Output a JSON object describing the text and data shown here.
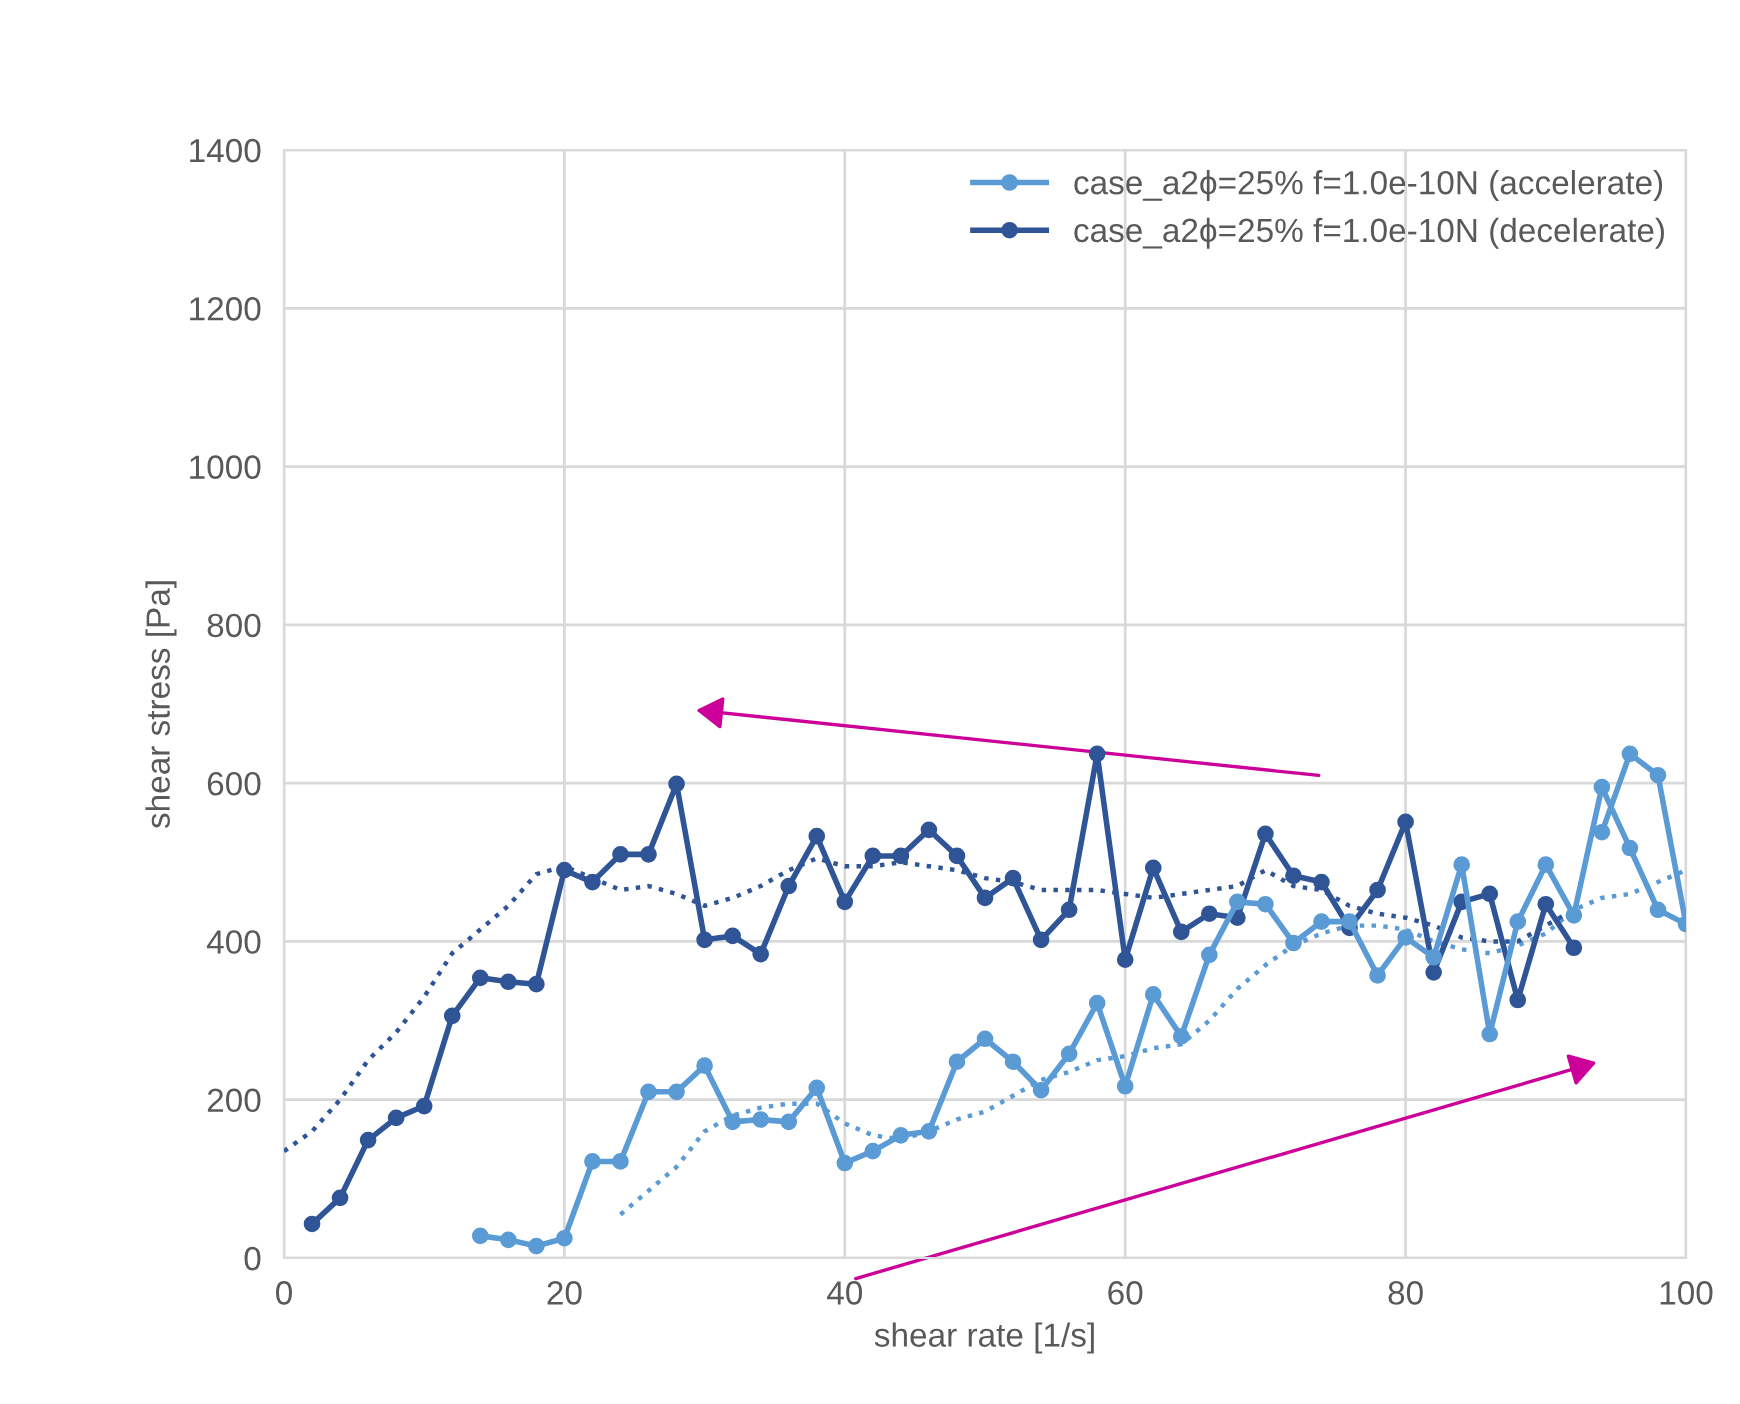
{
  "chart_data": {
    "type": "line",
    "xlabel": "shear rate [1/s]",
    "ylabel": "shear stress [Pa]",
    "xlim": [
      0,
      100
    ],
    "xticks": [
      0,
      20,
      40,
      60,
      80,
      100
    ],
    "ylim": [
      0,
      1400
    ],
    "yticks": [
      0,
      200,
      400,
      600,
      800,
      1000,
      1200,
      1400
    ],
    "grid": true,
    "legend": "top right",
    "marker": "circle",
    "line_style": "solid",
    "series": [
      {
        "name": "case_a2ϕ=25% f=1.0e-10N (accelerate)",
        "color": "#5b9bd5",
        "x": [
          14,
          16,
          18,
          20,
          22,
          24,
          26,
          28,
          30,
          32,
          34,
          36,
          38,
          40,
          42,
          44,
          46,
          48,
          50,
          52,
          54,
          56,
          58,
          60,
          62,
          64,
          66,
          68,
          70,
          72,
          74,
          76,
          78,
          80,
          82,
          84,
          86,
          88,
          90,
          92,
          94,
          96,
          98,
          100,
          98,
          96,
          94
        ],
        "values": [
          28,
          23,
          15,
          25,
          122,
          122,
          210,
          210,
          243,
          172,
          175,
          172,
          215,
          120,
          135,
          155,
          160,
          248,
          277,
          248,
          212,
          258,
          322,
          217,
          333,
          280,
          383,
          450,
          447,
          398,
          425,
          425,
          357,
          405,
          380,
          497,
          283,
          425,
          497,
          433,
          595,
          518,
          440,
          422,
          610,
          637,
          538
        ]
      },
      {
        "name": "case_a2ϕ=25% f=1.0e-10N (decelerate)",
        "color": "#2f5597",
        "x": [
          2,
          4,
          6,
          8,
          10,
          12,
          14,
          16,
          18,
          20,
          22,
          24,
          26,
          28,
          30,
          32,
          34,
          36,
          38,
          40,
          42,
          44,
          46,
          48,
          50,
          52,
          54,
          56,
          58,
          60,
          62,
          64,
          66,
          68,
          70,
          72,
          74,
          76,
          78,
          80,
          82,
          84,
          86,
          88,
          90,
          92
        ],
        "values": [
          43,
          76,
          149,
          177,
          192,
          306,
          354,
          349,
          346,
          490,
          475,
          510,
          510,
          599,
          402,
          407,
          384,
          470,
          533,
          450,
          508,
          508,
          541,
          508,
          455,
          480,
          402,
          440,
          637,
          377,
          493,
          412,
          435,
          430,
          536,
          483,
          475,
          417,
          465,
          551,
          361,
          450,
          460,
          326,
          447,
          392
        ]
      },
      {
        "color": "#2f5597",
        "marker": "none",
        "line_style": "dotted",
        "x": [
          0,
          2,
          4,
          6,
          8,
          10,
          12,
          14,
          16,
          18,
          20,
          22,
          24,
          26,
          28,
          30,
          32,
          34,
          36,
          38,
          40,
          42,
          44,
          46,
          48,
          50,
          52,
          54,
          56,
          58,
          60,
          62,
          64,
          66,
          68,
          70,
          72,
          74,
          76,
          78,
          80,
          82,
          84,
          86,
          88,
          90,
          92
        ],
        "values": [
          135,
          160,
          200,
          250,
          285,
          330,
          385,
          415,
          445,
          485,
          495,
          480,
          465,
          470,
          460,
          445,
          455,
          470,
          490,
          505,
          495,
          495,
          500,
          495,
          490,
          480,
          475,
          465,
          465,
          465,
          460,
          455,
          460,
          465,
          470,
          490,
          470,
          465,
          445,
          435,
          430,
          420,
          405,
          400,
          400,
          420,
          440
        ]
      },
      {
        "color": "#5b9bd5",
        "marker": "none",
        "line_style": "dotted",
        "x": [
          24,
          26,
          28,
          30,
          32,
          34,
          36,
          38,
          40,
          42,
          44,
          46,
          48,
          50,
          52,
          54,
          56,
          58,
          60,
          62,
          64,
          66,
          68,
          70,
          72,
          74,
          76,
          78,
          80,
          82,
          84,
          86,
          88,
          90,
          92,
          94,
          96,
          98,
          100
        ],
        "values": [
          55,
          85,
          115,
          160,
          180,
          190,
          195,
          195,
          170,
          155,
          150,
          160,
          175,
          185,
          205,
          225,
          235,
          250,
          255,
          265,
          270,
          300,
          340,
          370,
          395,
          410,
          420,
          420,
          415,
          400,
          390,
          385,
          395,
          410,
          440,
          455,
          460,
          475,
          490
        ]
      }
    ]
  }
}
